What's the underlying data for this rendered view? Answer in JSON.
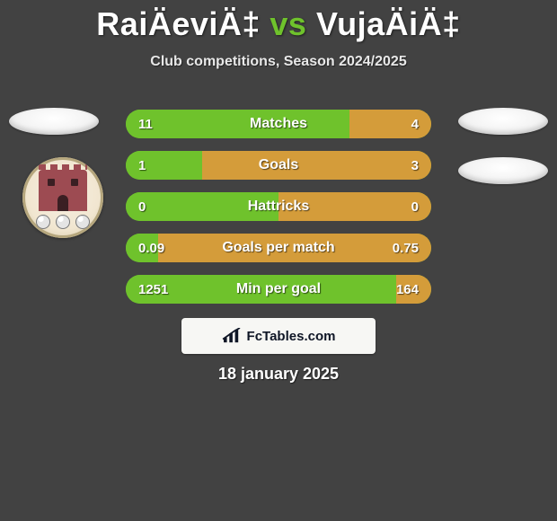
{
  "header": {
    "player1": "RaiÄeviÄ‡",
    "vs": "vs",
    "player2": "VujaÄiÄ‡",
    "subtitle": "Club competitions, Season 2024/2025"
  },
  "palette": {
    "left": "#6fc22c",
    "right": "#d49c3a",
    "text": "#ffffff"
  },
  "bars": [
    {
      "label": "Matches",
      "left_value": "11",
      "right_value": "4",
      "left_num": 11,
      "right_num": 4,
      "left_pct": 73.3,
      "right_pct": 26.7
    },
    {
      "label": "Goals",
      "left_value": "1",
      "right_value": "3",
      "left_num": 1,
      "right_num": 3,
      "left_pct": 25.0,
      "right_pct": 75.0
    },
    {
      "label": "Hattricks",
      "left_value": "0",
      "right_value": "0",
      "left_num": 0,
      "right_num": 0,
      "left_pct": 50.0,
      "right_pct": 50.0
    },
    {
      "label": "Goals per match",
      "left_value": "0.09",
      "right_value": "0.75",
      "left_num": 0.09,
      "right_num": 0.75,
      "left_pct": 10.7,
      "right_pct": 89.3
    },
    {
      "label": "Min per goal",
      "left_value": "1251",
      "right_value": "164",
      "left_num": 1251,
      "right_num": 164,
      "left_pct": 88.4,
      "right_pct": 11.6
    }
  ],
  "brand": {
    "text": "FcTables.com"
  },
  "date": "18 january 2025"
}
